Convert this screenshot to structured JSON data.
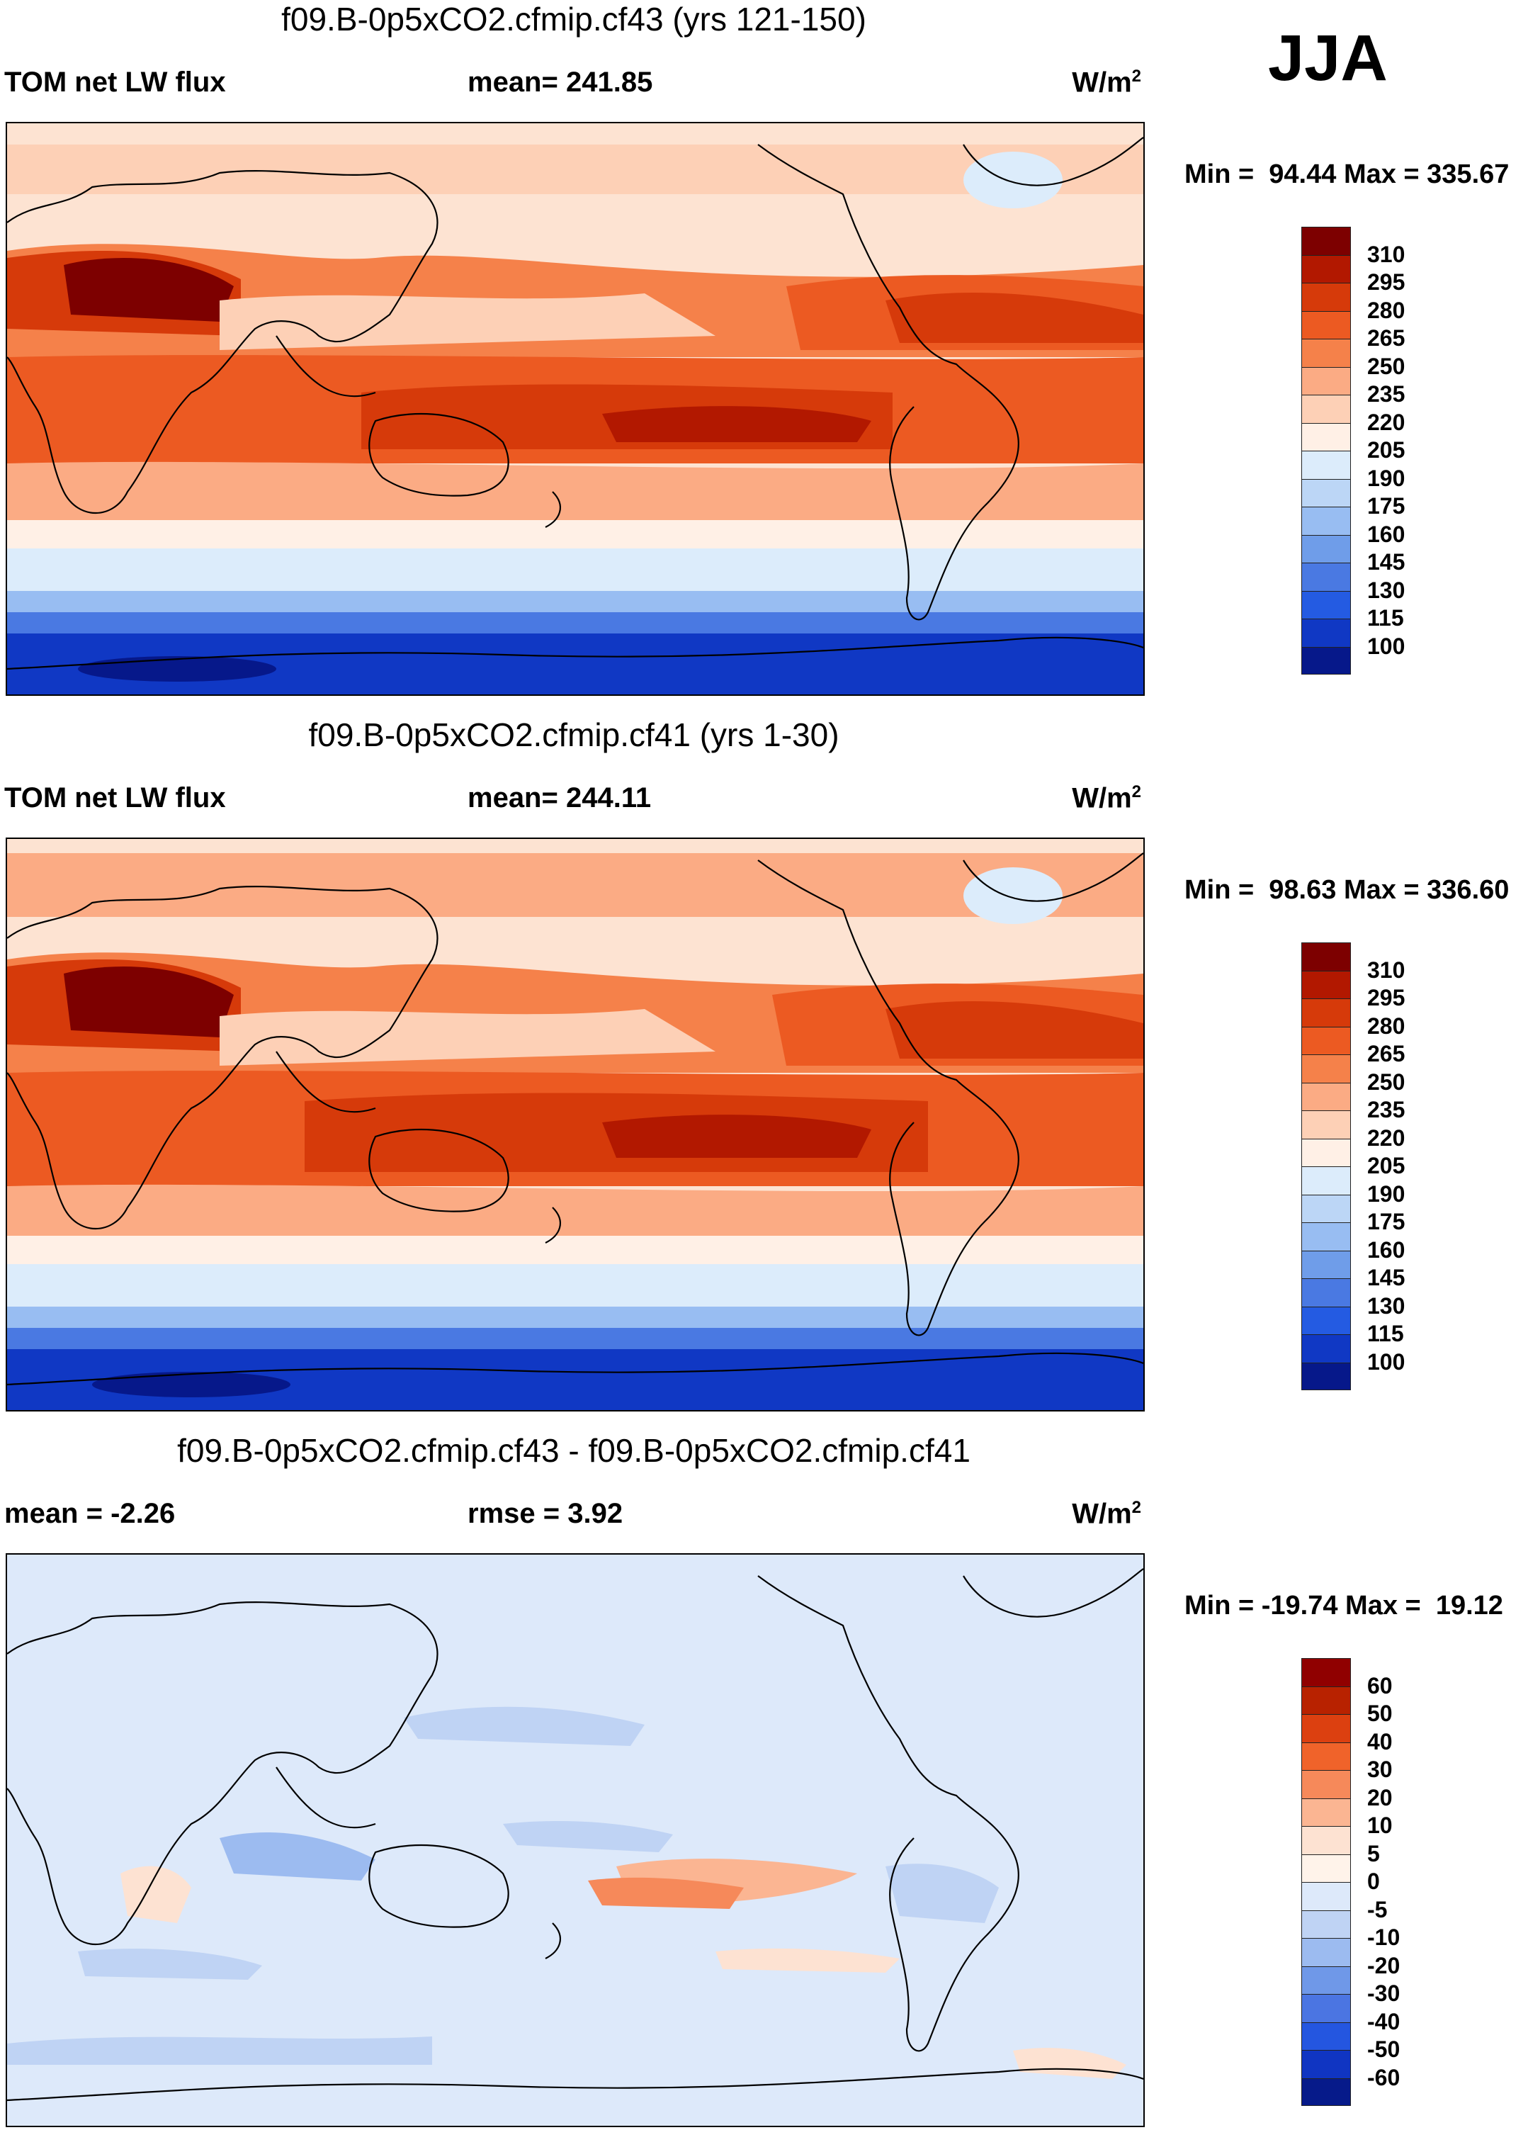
{
  "season": "JJA",
  "colorbar_abs": [
    "#7d0000",
    "#b21800",
    "#d63a0a",
    "#ec5a22",
    "#f5814a",
    "#fbab84",
    "#fdd0b6",
    "#fff0e6",
    "#dcecfb",
    "#bcd6f6",
    "#98bdf2",
    "#6f9de9",
    "#4a79e2",
    "#245be2",
    "#1038c4",
    "#06188a"
  ],
  "colorbar_diff": [
    "#900000",
    "#b82200",
    "#dc4010",
    "#f0632a",
    "#f6895a",
    "#fbb592",
    "#fde2d2",
    "#fff3ea",
    "#dde9fa",
    "#bfd3f4",
    "#9cbbf0",
    "#6f98e8",
    "#4b75e2",
    "#2456e0",
    "#1035c2",
    "#061a8a"
  ],
  "panels": [
    {
      "title": "f09.B-0p5xCO2.cfmip.cf43 (yrs 121-150)",
      "left_label": "TOM net LW flux",
      "mid_label": "mean= 241.85",
      "units_prefix": "W/m",
      "units_exp": "2",
      "minmax": "Min =  94.44 Max = 335.67",
      "contour_labels": [
        "310",
        "295",
        "280",
        "265",
        "250",
        "235",
        "220",
        "205",
        "190",
        "175",
        "160",
        "145",
        "130",
        "115",
        "100"
      ]
    },
    {
      "title": "f09.B-0p5xCO2.cfmip.cf41 (yrs 1-30)",
      "left_label": "TOM net LW flux",
      "mid_label": "mean= 244.11",
      "units_prefix": "W/m",
      "units_exp": "2",
      "minmax": "Min =  98.63 Max = 336.60",
      "contour_labels": [
        "310",
        "295",
        "280",
        "265",
        "250",
        "235",
        "220",
        "205",
        "190",
        "175",
        "160",
        "145",
        "130",
        "115",
        "100"
      ]
    },
    {
      "title": "f09.B-0p5xCO2.cfmip.cf43 - f09.B-0p5xCO2.cfmip.cf41",
      "left_label": "mean =  -2.26",
      "mid_label": "rmse =    3.92",
      "units_prefix": "W/m",
      "units_exp": "2",
      "minmax": "Min = -19.74 Max =  19.12",
      "contour_labels": [
        "60",
        "50",
        "40",
        "30",
        "20",
        "10",
        "5",
        "0",
        "-5",
        "-10",
        "-20",
        "-30",
        "-40",
        "-50",
        "-60"
      ]
    }
  ]
}
